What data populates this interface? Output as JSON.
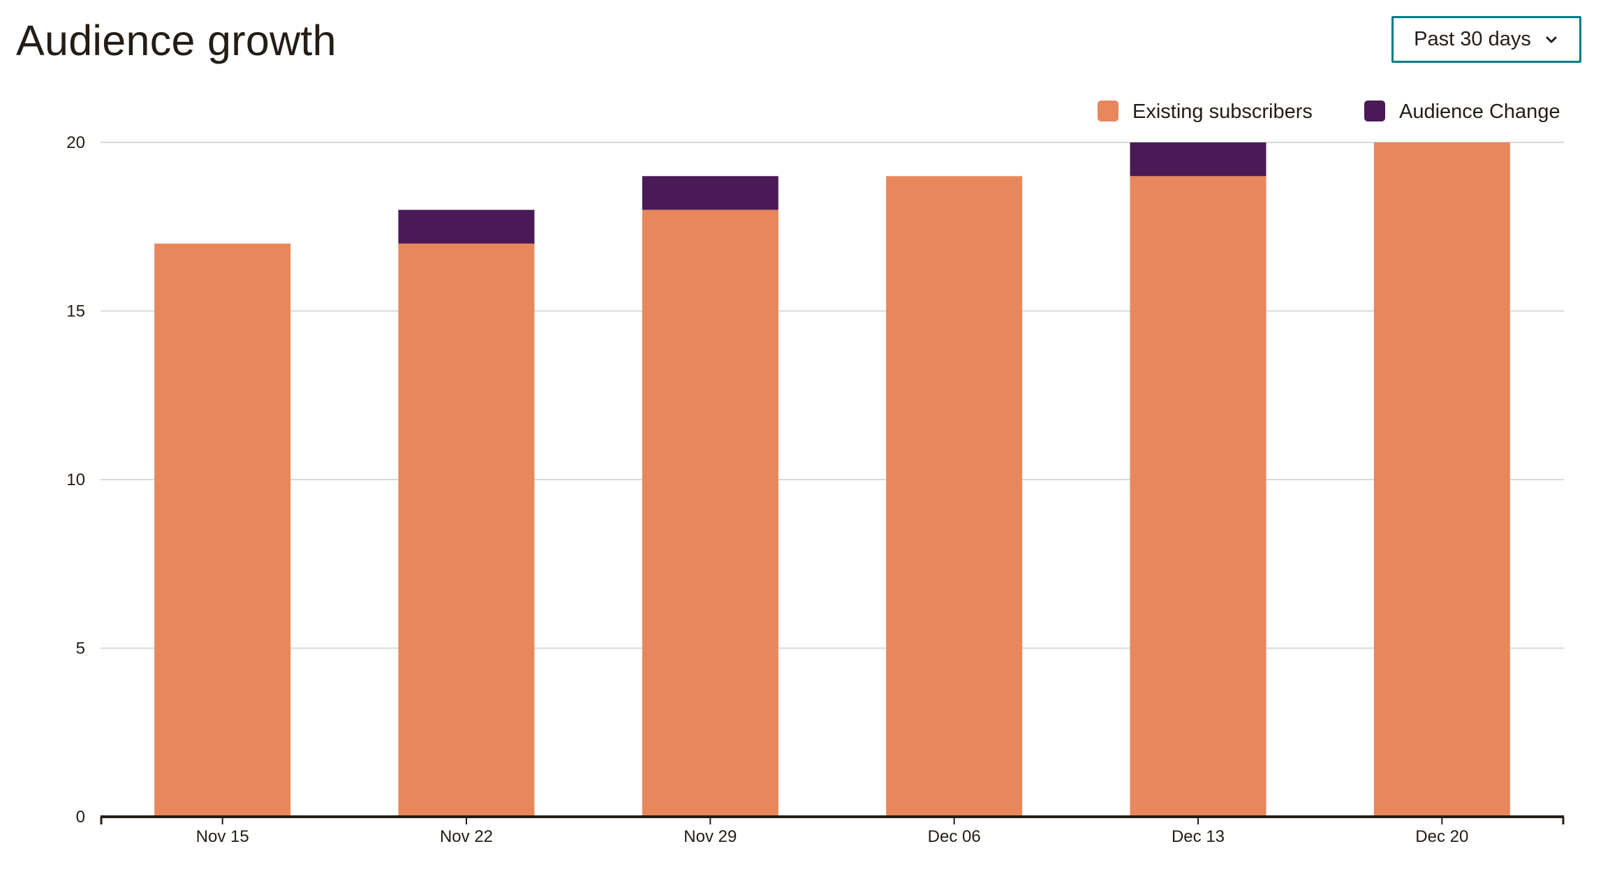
{
  "header": {
    "title": "Audience growth",
    "range_label": "Past 30 days",
    "range_icon": "chevron-down-icon"
  },
  "colors": {
    "existing": "#e8875c",
    "change": "#4a1a57",
    "grid": "#d9d9d9",
    "axis": "#241c15",
    "accent": "#007c89"
  },
  "chart_data": {
    "type": "bar",
    "stacked": true,
    "categories": [
      "Nov 15",
      "Nov 22",
      "Nov 29",
      "Dec 06",
      "Dec 13",
      "Dec 20"
    ],
    "series": [
      {
        "name": "Existing subscribers",
        "values": [
          17,
          17,
          18,
          19,
          19,
          20
        ]
      },
      {
        "name": "Audience Change",
        "values": [
          0,
          1,
          1,
          0,
          1,
          0
        ]
      }
    ],
    "yticks": [
      0,
      5,
      10,
      15,
      20
    ],
    "ylim": [
      0,
      20
    ],
    "grid": true,
    "legend_position": "top-right",
    "title": "",
    "xlabel": "",
    "ylabel": ""
  }
}
